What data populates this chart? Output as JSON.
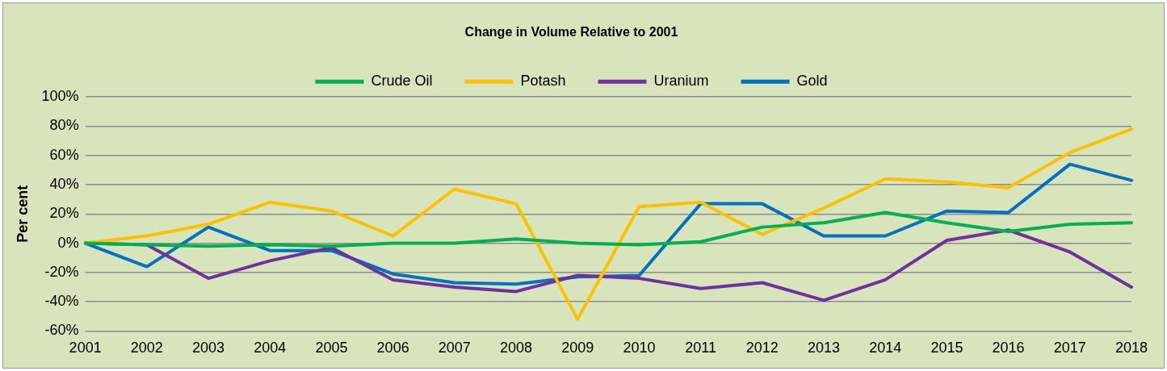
{
  "chart_data": {
    "type": "line",
    "title": "Change in Volume Relative to 2001",
    "ylabel": "Per cent",
    "categories": [
      "2001",
      "2002",
      "2003",
      "2004",
      "2005",
      "2006",
      "2007",
      "2008",
      "2009",
      "2010",
      "2011",
      "2012",
      "2013",
      "2014",
      "2015",
      "2016",
      "2017",
      "2018"
    ],
    "series": [
      {
        "name": "Crude Oil",
        "color": "#00b050",
        "values": [
          0,
          -1,
          -2,
          -1,
          -2,
          0,
          0,
          3,
          0,
          -1,
          1,
          11,
          14,
          21,
          14,
          8,
          13,
          14
        ]
      },
      {
        "name": "Potash",
        "color": "#ffc000",
        "values": [
          0,
          5,
          13,
          28,
          22,
          5,
          37,
          27,
          -52,
          25,
          28,
          6,
          24,
          44,
          42,
          38,
          62,
          78
        ]
      },
      {
        "name": "Uranium",
        "color": "#7030a0",
        "values": [
          0,
          -1,
          -24,
          -12,
          -3,
          -25,
          -30,
          -33,
          -22,
          -24,
          -31,
          -27,
          -39,
          -25,
          2,
          9,
          -6,
          -30
        ]
      },
      {
        "name": "Gold",
        "color": "#0070c0",
        "values": [
          0,
          -16,
          11,
          -5,
          -5,
          -21,
          -27,
          -28,
          -23,
          -22,
          27,
          27,
          5,
          5,
          22,
          21,
          54,
          43
        ]
      }
    ],
    "ylim": [
      -60,
      100
    ],
    "yticks": [
      {
        "value": -60,
        "label": "-60%"
      },
      {
        "value": -40,
        "label": "-40%"
      },
      {
        "value": -20,
        "label": "-20%"
      },
      {
        "value": 0,
        "label": "0%"
      },
      {
        "value": 20,
        "label": "20%"
      },
      {
        "value": 40,
        "label": "40%"
      },
      {
        "value": 60,
        "label": "60%"
      },
      {
        "value": 80,
        "label": "80%"
      },
      {
        "value": 100,
        "label": "100%"
      }
    ],
    "grid": "y",
    "legend": "top",
    "marker": "none",
    "line_style": "solid"
  }
}
